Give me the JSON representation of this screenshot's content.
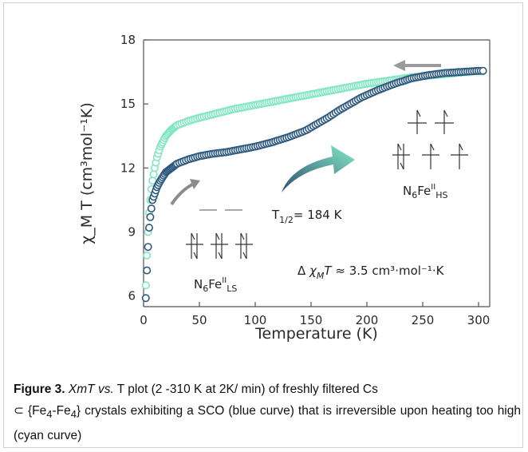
{
  "chart_data": {
    "type": "scatter",
    "xlabel": "Temperature (K)",
    "ylabel": "χ_M T (cm³mol⁻¹K)",
    "xlim": [
      0,
      310
    ],
    "ylim": [
      5.5,
      18
    ],
    "xticks": [
      "0",
      "50",
      "100",
      "150",
      "200",
      "250",
      "300"
    ],
    "yticks": [
      "6",
      "9",
      "12",
      "15",
      "18"
    ],
    "grid": false,
    "series": [
      {
        "name": "",
        "color": "#2c587e",
        "x": [
          2,
          3,
          4,
          5,
          6,
          7,
          8,
          10,
          12,
          15,
          20,
          25,
          30,
          40,
          50,
          60,
          75,
          90,
          100,
          115,
          130,
          145,
          155,
          165,
          175,
          185,
          195,
          210,
          225,
          240,
          255,
          270,
          285,
          300,
          305
        ],
        "y": [
          5.9,
          7.2,
          8.3,
          9.2,
          9.7,
          10.1,
          10.5,
          10.8,
          11.1,
          11.4,
          11.8,
          12.0,
          12.2,
          12.4,
          12.55,
          12.65,
          12.75,
          12.9,
          13.0,
          13.2,
          13.45,
          13.75,
          14.05,
          14.35,
          14.7,
          15.0,
          15.3,
          15.65,
          15.95,
          16.2,
          16.35,
          16.45,
          16.5,
          16.55,
          16.55
        ]
      },
      {
        "name": "",
        "color": "#7fe6c0",
        "x": [
          2,
          3,
          4,
          5,
          6,
          7,
          8,
          10,
          12,
          15,
          20,
          25,
          30,
          40,
          50,
          65,
          80,
          100,
          120,
          140,
          160,
          180,
          200,
          220,
          240,
          260,
          280,
          300,
          305
        ],
        "y": [
          6.5,
          7.9,
          9.0,
          9.9,
          10.5,
          11.0,
          11.4,
          12.0,
          12.5,
          13.0,
          13.5,
          13.8,
          14.0,
          14.2,
          14.35,
          14.55,
          14.75,
          14.95,
          15.15,
          15.35,
          15.55,
          15.75,
          15.95,
          16.1,
          16.25,
          16.35,
          16.45,
          16.55,
          16.55
        ]
      }
    ],
    "annotations": {
      "t_half": "T",
      "t_half_sub": "1/2",
      "t_half_value": "= 184 K",
      "ls_main": "N",
      "ls_sub1": "6",
      "ls_fe": "Fe",
      "ls_sup": "II",
      "ls_sub2": "LS",
      "hs_main": "N",
      "hs_sub1": "6",
      "hs_fe": "Fe",
      "hs_sup": "II",
      "hs_sub2": "HS",
      "delta_prefix": "Δ ",
      "delta_sym": "χ",
      "delta_sub": "M",
      "delta_t": "T",
      "delta_value": " ≈ 3.5 cm³·mol⁻¹·K"
    },
    "colors": {
      "blue_curve": "#2c587e",
      "cyan_curve": "#7fe6c0",
      "hs_label": "#8ee6c8",
      "ls_label": "#2c587e"
    }
  },
  "caption": {
    "label": "Figure 3.",
    "italic_1": "XmT vs.",
    "text_1": " T plot (2 -310 K at 2K/ min) of freshly filtered Cs ",
    "subset_symbol": "⊂",
    "text_2": " {Fe",
    "sub_1": "4",
    "text_3": "-Fe",
    "sub_2": "4",
    "text_4": "} crystals exhibiting a SCO (blue curve) that is irreversible upon heating too high (cyan curve)"
  }
}
